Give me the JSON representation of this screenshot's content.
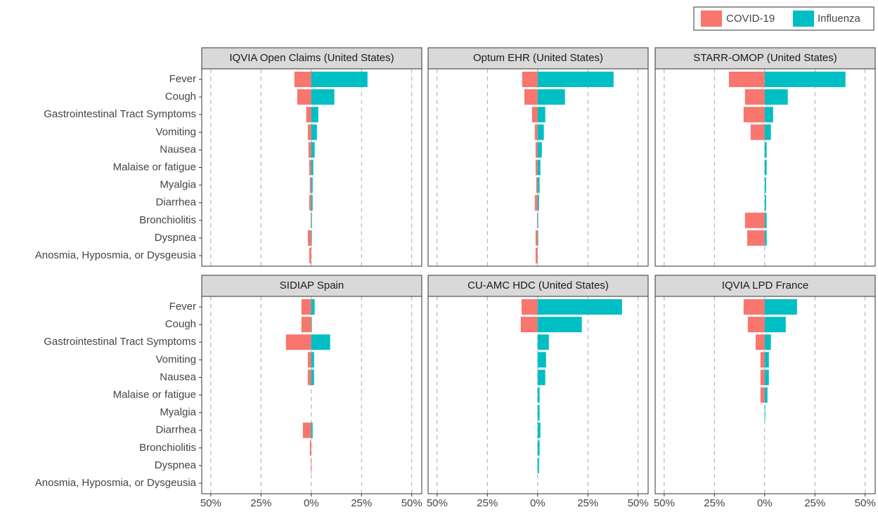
{
  "chart_data": [
    {
      "type": "bar",
      "title": "IQVIA Open Claims (United States)",
      "legend": "top-right",
      "categories": [
        "Fever",
        "Cough",
        "Gastrointestinal Tract Symptoms",
        "Vomiting",
        "Nausea",
        "Malaise or fatigue",
        "Myalgia",
        "Diarrhea",
        "Bronchiolitis",
        "Dyspnea",
        "Anosmia, Hyposmia, or Dysgeusia"
      ],
      "series": [
        {
          "name": "COVID-19",
          "color": "#f8766d",
          "values": [
            -8.4,
            -7,
            -2.5,
            -1.7,
            -1.4,
            -1,
            -0.7,
            -1,
            -0.3,
            -1.7,
            -1
          ]
        },
        {
          "name": "Influenza",
          "color": "#00bfc4",
          "values": [
            28,
            11.5,
            3.5,
            2.8,
            1.7,
            1,
            0.7,
            0.7,
            0.3,
            0.3,
            0
          ]
        }
      ],
      "xlim": [
        -54.5,
        55
      ],
      "xticks": [
        {
          "value": -50,
          "label": "50%"
        },
        {
          "value": -25,
          "label": "25%"
        },
        {
          "value": 0,
          "label": "0%"
        },
        {
          "value": 25,
          "label": "25%"
        },
        {
          "value": 50,
          "label": "50%"
        }
      ],
      "grid": true
    },
    {
      "type": "bar",
      "title": "Optum EHR (United States)",
      "series": [
        {
          "color": "#f8766d",
          "values": [
            -7.7,
            -6.6,
            -2.8,
            -1.4,
            -1,
            -1,
            -0.7,
            -1.4,
            -0.3,
            -1,
            -1
          ]
        },
        {
          "color": "#00bfc4",
          "values": [
            37.8,
            13.6,
            3.8,
            3.1,
            2.1,
            1.4,
            1,
            0.7,
            0.3,
            0.3,
            0
          ]
        }
      ],
      "xlim": [
        -54.5,
        55
      ],
      "xticks": [
        {
          "value": -50,
          "label": "50%"
        },
        {
          "value": -25,
          "label": "25%"
        },
        {
          "value": 0,
          "label": "0%"
        },
        {
          "value": 25,
          "label": "25%"
        },
        {
          "value": 50,
          "label": "50%"
        }
      ],
      "grid": true
    },
    {
      "type": "bar",
      "title": "STARR-OMOP (United States)",
      "series": [
        {
          "color": "#f8766d",
          "values": [
            -17.8,
            -9.8,
            -10.5,
            -7,
            0,
            0,
            0,
            0,
            -9.8,
            -8.7,
            0
          ]
        },
        {
          "color": "#00bfc4",
          "values": [
            40.2,
            11.5,
            4.2,
            3.1,
            1,
            1,
            0.7,
            0.7,
            1,
            1,
            0
          ]
        }
      ],
      "xlim": [
        -54.5,
        55
      ],
      "xticks": [
        {
          "value": -50,
          "label": "50%"
        },
        {
          "value": -25,
          "label": "25%"
        },
        {
          "value": 0,
          "label": "0%"
        },
        {
          "value": 25,
          "label": "25%"
        },
        {
          "value": 50,
          "label": "50%"
        }
      ],
      "grid": true
    },
    {
      "type": "bar",
      "title": "SIDIAP Spain",
      "categories": [
        "Fever",
        "Cough",
        "Gastrointestinal Tract Symptoms",
        "Vomiting",
        "Nausea",
        "Malaise or fatigue",
        "Myalgia",
        "Diarrhea",
        "Bronchiolitis",
        "Dyspnea",
        "Anosmia, Hyposmia, or Dysgeusia"
      ],
      "series": [
        {
          "color": "#f8766d",
          "values": [
            -4.9,
            -4.9,
            -12.6,
            -1.7,
            -1.7,
            0,
            0,
            -4.2,
            -0.7,
            -0.3,
            0
          ]
        },
        {
          "color": "#00bfc4",
          "values": [
            1.7,
            0.3,
            9.4,
            1.4,
            1.4,
            0,
            0,
            0.7,
            0,
            0,
            0
          ]
        }
      ],
      "xlim": [
        -54.5,
        55
      ],
      "xticks": [
        {
          "value": -50,
          "label": "50%"
        },
        {
          "value": -25,
          "label": "25%"
        },
        {
          "value": 0,
          "label": "0%"
        },
        {
          "value": 25,
          "label": "25%"
        },
        {
          "value": 50,
          "label": "50%"
        }
      ],
      "grid": true
    },
    {
      "type": "bar",
      "title": "CU-AMC HDC (United States)",
      "series": [
        {
          "color": "#f8766d",
          "values": [
            -8,
            -8.4,
            0,
            0,
            0,
            0,
            0,
            0,
            0,
            0,
            0
          ]
        },
        {
          "color": "#00bfc4",
          "values": [
            42,
            22,
            5.6,
            4.2,
            3.8,
            1,
            1,
            1.4,
            1,
            0.7,
            0
          ]
        }
      ],
      "xlim": [
        -54.5,
        55
      ],
      "xticks": [
        {
          "value": -50,
          "label": "50%"
        },
        {
          "value": -25,
          "label": "25%"
        },
        {
          "value": 0,
          "label": "0%"
        },
        {
          "value": 25,
          "label": "25%"
        },
        {
          "value": 50,
          "label": "50%"
        }
      ],
      "grid": true
    },
    {
      "type": "bar",
      "title": "IQVIA LPD France",
      "series": [
        {
          "color": "#f8766d",
          "values": [
            -10.5,
            -8.4,
            -4.5,
            -2.1,
            -2.1,
            -2.1,
            0,
            0,
            0,
            0,
            0
          ]
        },
        {
          "color": "#00bfc4",
          "values": [
            16.1,
            10.5,
            3.1,
            2.1,
            2.1,
            1.4,
            0.3,
            0,
            0,
            0,
            0
          ]
        }
      ],
      "xlim": [
        -54.5,
        55
      ],
      "xticks": [
        {
          "value": -50,
          "label": "50%"
        },
        {
          "value": -25,
          "label": "25%"
        },
        {
          "value": 0,
          "label": "0%"
        },
        {
          "value": 25,
          "label": "25%"
        },
        {
          "value": 50,
          "label": "50%"
        }
      ],
      "grid": true
    }
  ]
}
